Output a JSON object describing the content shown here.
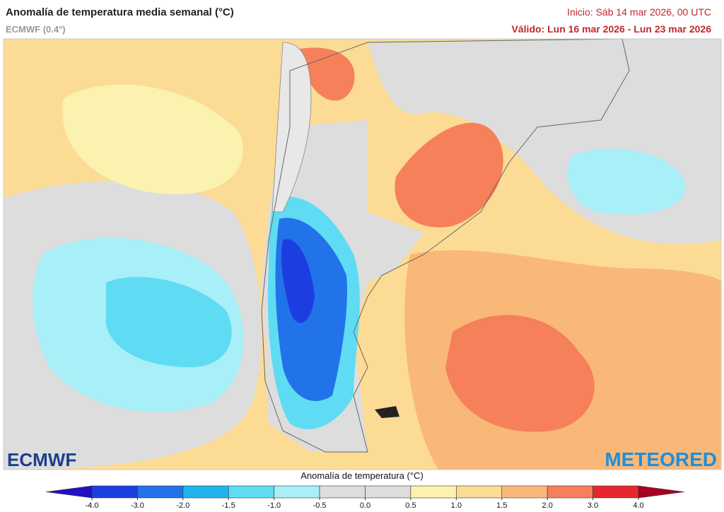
{
  "header": {
    "title": "Anomalía de temperatura media semanal (°C)",
    "model": "ECMWF (0.4°)",
    "init": "Inicio: Sáb 14 mar 2026, 00 UTC",
    "valid": "Válido: Lun 16 mar 2026 - Lun 23 mar 2026"
  },
  "logos": {
    "left": "ECMWF",
    "right": "METEORED"
  },
  "colorbar": {
    "title": "Anomalía de temperatura (°C)",
    "ticks": [
      {
        "value": -4,
        "label": "-4.0"
      },
      {
        "value": -3,
        "label": "-3.0"
      },
      {
        "value": -2,
        "label": "-2.0"
      },
      -1.5,
      {
        "value": -1,
        "label": "-1.0"
      },
      -0.5,
      {
        "value": 0,
        "label": "0.0"
      },
      0.5,
      {
        "value": 1,
        "label": "1.0"
      },
      1.5,
      {
        "value": 2,
        "label": "2.0"
      },
      {
        "value": 3,
        "label": "3.0"
      },
      {
        "value": 4,
        "label": "4.0"
      }
    ],
    "colors": [
      "#2410c0",
      "#1c3ee0",
      "#2272ea",
      "#20b4ef",
      "#5fdcf3",
      "#a8eff8",
      "#dddddd",
      "#dddddd",
      "#fbf2b0",
      "#fcdb95",
      "#fab878",
      "#f5805a",
      "#e6282e",
      "#a80020"
    ]
  }
}
